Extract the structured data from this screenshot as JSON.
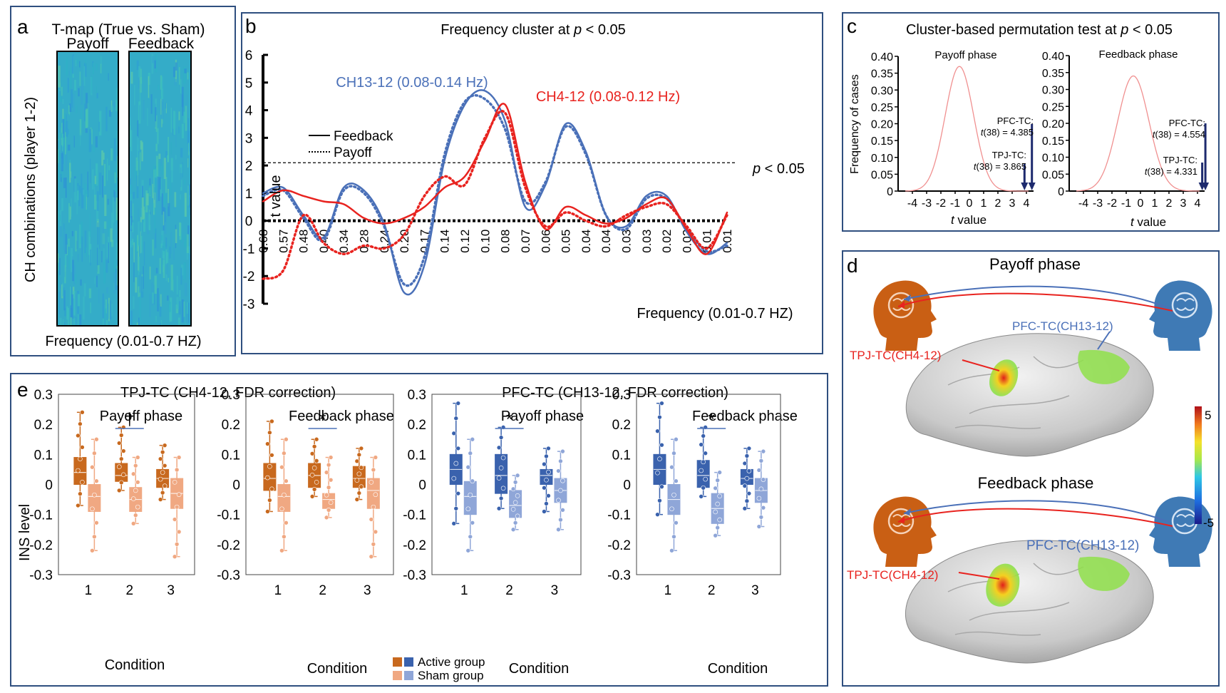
{
  "panel_a": {
    "letter": "a",
    "title": "T-map (True vs. Sham)",
    "col1": "Payoff",
    "col2": "Feedback",
    "ylabel": "CH combinations (player 1-2)",
    "xlabel": "Frequency (0.01-0.7 HZ)"
  },
  "panel_b": {
    "letter": "b",
    "title": "Frequency cluster at ",
    "title_p": "p",
    "title_tail": " < 0.05",
    "ylabel": "t value",
    "xlabel": "Frequency (0.01-0.7 HZ)",
    "sig_p": "p",
    "sig_tail": " < 0.05",
    "label_ch13": "CH13-12 (0.08-0.14 Hz)",
    "label_ch4": "CH4-12 (0.08-0.12 Hz)",
    "legend_solid": "Feedback",
    "legend_dot": "Payoff"
  },
  "panel_c": {
    "letter": "c",
    "title": "Cluster-based permutation test at ",
    "title_p": "p",
    "title_tail": " < 0.05",
    "ylabel": "Frequency of cases",
    "xlabel_t": "t",
    "xlabel_tail": " value",
    "sub1": "Payoff phase",
    "sub2": "Feedback phase",
    "pfc1_l1": "PFC-TC:",
    "pfc1_l2": "(38) = 4.385",
    "tpj1_l1": "TPJ-TC:",
    "tpj1_l2": "(38) = 3.865",
    "pfc2_l1": "PFC-TC:",
    "pfc2_l2": "(38) = 4.554",
    "tpj2_l1": "TPJ-TC:",
    "tpj2_l2": "(38) = 4.331",
    "t_glyph": "t"
  },
  "panel_d": {
    "letter": "d",
    "phase1": "Payoff phase",
    "phase2": "Feedback phase",
    "tpj_label": "TPJ-TC(CH4-12)",
    "pfc_label": "PFC-TC(CH13-12)",
    "cbar_max": "5",
    "cbar_min": "-5"
  },
  "panel_e": {
    "letter": "e",
    "group1_title": "TPJ-TC (CH4-12, FDR correction)",
    "group2_title": "PFC-TC (CH13-12, FDR correction)",
    "sub_payoff": "Payoff phase",
    "sub_feedback": "Feedback phase",
    "ylabel": "INS level",
    "xlabel": "Condition",
    "legend_active": "Active group",
    "legend_sham": "Sham group",
    "sig_dagger": "†",
    "sig_star": "*"
  },
  "colors": {
    "frame": "#2f4f7f",
    "blue_line": "#4a70b8",
    "red_line": "#e8231f",
    "orange_dark": "#c8691e",
    "orange_light": "#f0a882",
    "blue_dark": "#3a62ad",
    "blue_light": "#8fa6d8",
    "navy_arrow": "#1d2a6e"
  },
  "chart_data": [
    {
      "id": "b",
      "type": "line",
      "title": "Frequency cluster at p < 0.05",
      "xlabel": "Frequency (0.01-0.7 HZ)",
      "ylabel": "t value",
      "ylim": [
        -3,
        6
      ],
      "yticks": [
        "6",
        "5",
        "4",
        "3",
        "2",
        "1",
        "0",
        "-1",
        "-2",
        "-3"
      ],
      "xtick_labels": [
        "0.68",
        "0.57",
        "0.48",
        "0.40",
        "0.34",
        "0.28",
        "0.24",
        "0.20",
        "0.17",
        "0.14",
        "0.12",
        "0.10",
        "0.08",
        "0.07",
        "0.06",
        "0.05",
        "0.04",
        "0.04",
        "0.03",
        "0.03",
        "0.02",
        "0.02",
        "0.01",
        "0.01"
      ],
      "threshold": 2.1,
      "series": [
        {
          "name": "CH13-12 Feedback",
          "values": [
            1.0,
            1.2,
            0.2,
            -0.6,
            1.2,
            1.1,
            -0.1,
            -2.6,
            -1.6,
            2.2,
            4.2,
            4.7,
            3.6,
            0.5,
            1.3,
            3.5,
            2.5,
            0.2,
            -0.2,
            0.9,
            0.9,
            -0.4,
            -1.2,
            -0.8
          ]
        },
        {
          "name": "CH13-12 Payoff",
          "values": [
            0.9,
            1.1,
            0.1,
            -0.7,
            1.1,
            1.0,
            -0.2,
            -2.3,
            -1.3,
            2.4,
            4.3,
            4.4,
            3.3,
            0.7,
            1.4,
            3.4,
            2.4,
            0.2,
            -0.3,
            0.8,
            0.8,
            -0.3,
            -1.1,
            -0.9
          ]
        },
        {
          "name": "CH4-12 Feedback",
          "values": [
            0.7,
            1.1,
            0.9,
            0.7,
            0.6,
            0.1,
            -0.1,
            0.1,
            0.5,
            1.2,
            1.6,
            2.9,
            4.2,
            1.4,
            -0.3,
            0.5,
            0.2,
            -0.1,
            0.1,
            0.6,
            0.8,
            -0.3,
            -1.2,
            0.3
          ]
        },
        {
          "name": "CH4-12 Payoff",
          "values": [
            -2.1,
            -1.8,
            0.2,
            -0.8,
            -1.2,
            -0.9,
            -1.0,
            -0.5,
            0.9,
            1.6,
            1.3,
            3.0,
            3.9,
            1.2,
            -0.2,
            0.3,
            0.0,
            -0.2,
            0.2,
            0.5,
            0.6,
            -0.2,
            -1.0,
            0.2
          ]
        }
      ],
      "legend": [
        "Feedback",
        "Payoff"
      ],
      "annotations": [
        "CH13-12 (0.08-0.14 Hz)",
        "CH4-12 (0.08-0.12 Hz)",
        "p < 0.05"
      ]
    },
    {
      "id": "c1",
      "type": "line",
      "title": "Payoff phase",
      "xlabel": "t value",
      "ylabel": "Frequency of cases",
      "xlim": [
        -5,
        4.5
      ],
      "ylim": [
        0,
        0.4
      ],
      "xticks": [
        "-4",
        "-3",
        "-2",
        "-1",
        "0",
        "1",
        "2",
        "3",
        "4"
      ],
      "yticks": [
        "0.40",
        "0.35",
        "0.30",
        "0.25",
        "0.20",
        "0.15",
        "0.10",
        "0.05",
        "0"
      ],
      "distribution": {
        "mean": -0.7,
        "sd": 1.0,
        "peak": 0.37
      },
      "observed": [
        {
          "name": "PFC-TC",
          "t": 4.385
        },
        {
          "name": "TPJ-TC",
          "t": 3.865
        }
      ]
    },
    {
      "id": "c2",
      "type": "line",
      "title": "Feedback phase",
      "xlabel": "t value",
      "ylabel": "Frequency of cases",
      "xlim": [
        -5,
        4.5
      ],
      "ylim": [
        0,
        0.4
      ],
      "xticks": [
        "-4",
        "-3",
        "-2",
        "-1",
        "0",
        "1",
        "2",
        "3",
        "4"
      ],
      "yticks": [
        "0.40",
        "0.35",
        "0.30",
        "0.25",
        "0.20",
        "0.15",
        "0.10",
        "0.05",
        "0"
      ],
      "distribution": {
        "mean": -0.5,
        "sd": 1.1,
        "peak": 0.34
      },
      "observed": [
        {
          "name": "PFC-TC",
          "t": 4.554
        },
        {
          "name": "TPJ-TC",
          "t": 4.331
        }
      ]
    },
    {
      "id": "e1",
      "type": "bar",
      "title": "TPJ-TC Payoff phase",
      "ylim": [
        -0.3,
        0.3
      ],
      "yticks": [
        "0.3",
        "0.2",
        "0.1",
        "0",
        "-0.1",
        "-0.2",
        "-0.3"
      ],
      "categories": [
        "1",
        "2",
        "3"
      ],
      "series": [
        {
          "name": "Active group",
          "boxes": [
            [
              -0.07,
              0.0,
              0.04,
              0.09,
              0.24
            ],
            [
              -0.02,
              0.01,
              0.03,
              0.07,
              0.19
            ],
            [
              -0.05,
              -0.01,
              0.02,
              0.05,
              0.13
            ]
          ]
        },
        {
          "name": "Sham group",
          "boxes": [
            [
              -0.22,
              -0.09,
              -0.04,
              0.0,
              0.15
            ],
            [
              -0.13,
              -0.09,
              -0.05,
              -0.01,
              0.09
            ],
            [
              -0.24,
              -0.08,
              -0.03,
              0.02,
              0.09
            ]
          ]
        }
      ],
      "significance": {
        "category": "2",
        "mark": "†"
      }
    },
    {
      "id": "e2",
      "type": "bar",
      "title": "TPJ-TC Feedback phase",
      "ylim": [
        -0.3,
        0.3
      ],
      "yticks": [
        "0.3",
        "0.2",
        "0.1",
        "0",
        "-0.1",
        "-0.2",
        "-0.3"
      ],
      "categories": [
        "1",
        "2",
        "3"
      ],
      "series": [
        {
          "name": "Active group",
          "boxes": [
            [
              -0.09,
              -0.02,
              0.02,
              0.07,
              0.21
            ],
            [
              -0.04,
              -0.01,
              0.03,
              0.07,
              0.15
            ],
            [
              -0.05,
              -0.01,
              0.02,
              0.06,
              0.12
            ]
          ]
        },
        {
          "name": "Sham group",
          "boxes": [
            [
              -0.22,
              -0.09,
              -0.04,
              0.0,
              0.15
            ],
            [
              -0.11,
              -0.08,
              -0.05,
              -0.03,
              0.09
            ],
            [
              -0.24,
              -0.08,
              -0.02,
              0.02,
              0.09
            ]
          ]
        }
      ],
      "significance": {
        "category": "2",
        "mark": "*"
      }
    },
    {
      "id": "e3",
      "type": "bar",
      "title": "PFC-TC Payoff phase",
      "ylim": [
        -0.3,
        0.3
      ],
      "yticks": [
        "0.3",
        "0.2",
        "0.1",
        "0",
        "-0.1",
        "-0.2",
        "-0.3"
      ],
      "categories": [
        "1",
        "2",
        "3"
      ],
      "series": [
        {
          "name": "Active group",
          "boxes": [
            [
              -0.13,
              0.0,
              0.05,
              0.1,
              0.27
            ],
            [
              -0.08,
              -0.03,
              0.03,
              0.1,
              0.19
            ],
            [
              -0.09,
              0.0,
              0.03,
              0.05,
              0.12
            ]
          ]
        },
        {
          "name": "Sham group",
          "boxes": [
            [
              -0.22,
              -0.1,
              -0.04,
              0.01,
              0.15
            ],
            [
              -0.15,
              -0.11,
              -0.07,
              -0.02,
              0.03
            ],
            [
              -0.15,
              -0.06,
              -0.02,
              0.02,
              0.11
            ]
          ]
        }
      ],
      "significance": {
        "category": "2",
        "mark": "*"
      }
    },
    {
      "id": "e4",
      "type": "bar",
      "title": "PFC-TC Feedback phase",
      "ylim": [
        -0.3,
        0.3
      ],
      "yticks": [
        "0.3",
        "0.2",
        "0.1",
        "0",
        "-0.1",
        "-0.2",
        "-0.3"
      ],
      "categories": [
        "1",
        "2",
        "3"
      ],
      "series": [
        {
          "name": "Active group",
          "boxes": [
            [
              -0.1,
              0.0,
              0.05,
              0.1,
              0.27
            ],
            [
              -0.04,
              -0.01,
              0.03,
              0.08,
              0.19
            ],
            [
              -0.08,
              0.0,
              0.02,
              0.05,
              0.12
            ]
          ]
        },
        {
          "name": "Sham group",
          "boxes": [
            [
              -0.22,
              -0.1,
              -0.05,
              0.0,
              0.15
            ],
            [
              -0.17,
              -0.13,
              -0.08,
              -0.03,
              0.04
            ],
            [
              -0.14,
              -0.06,
              -0.02,
              0.02,
              0.11
            ]
          ]
        }
      ],
      "significance": {
        "category": "2",
        "mark": "*"
      }
    }
  ]
}
